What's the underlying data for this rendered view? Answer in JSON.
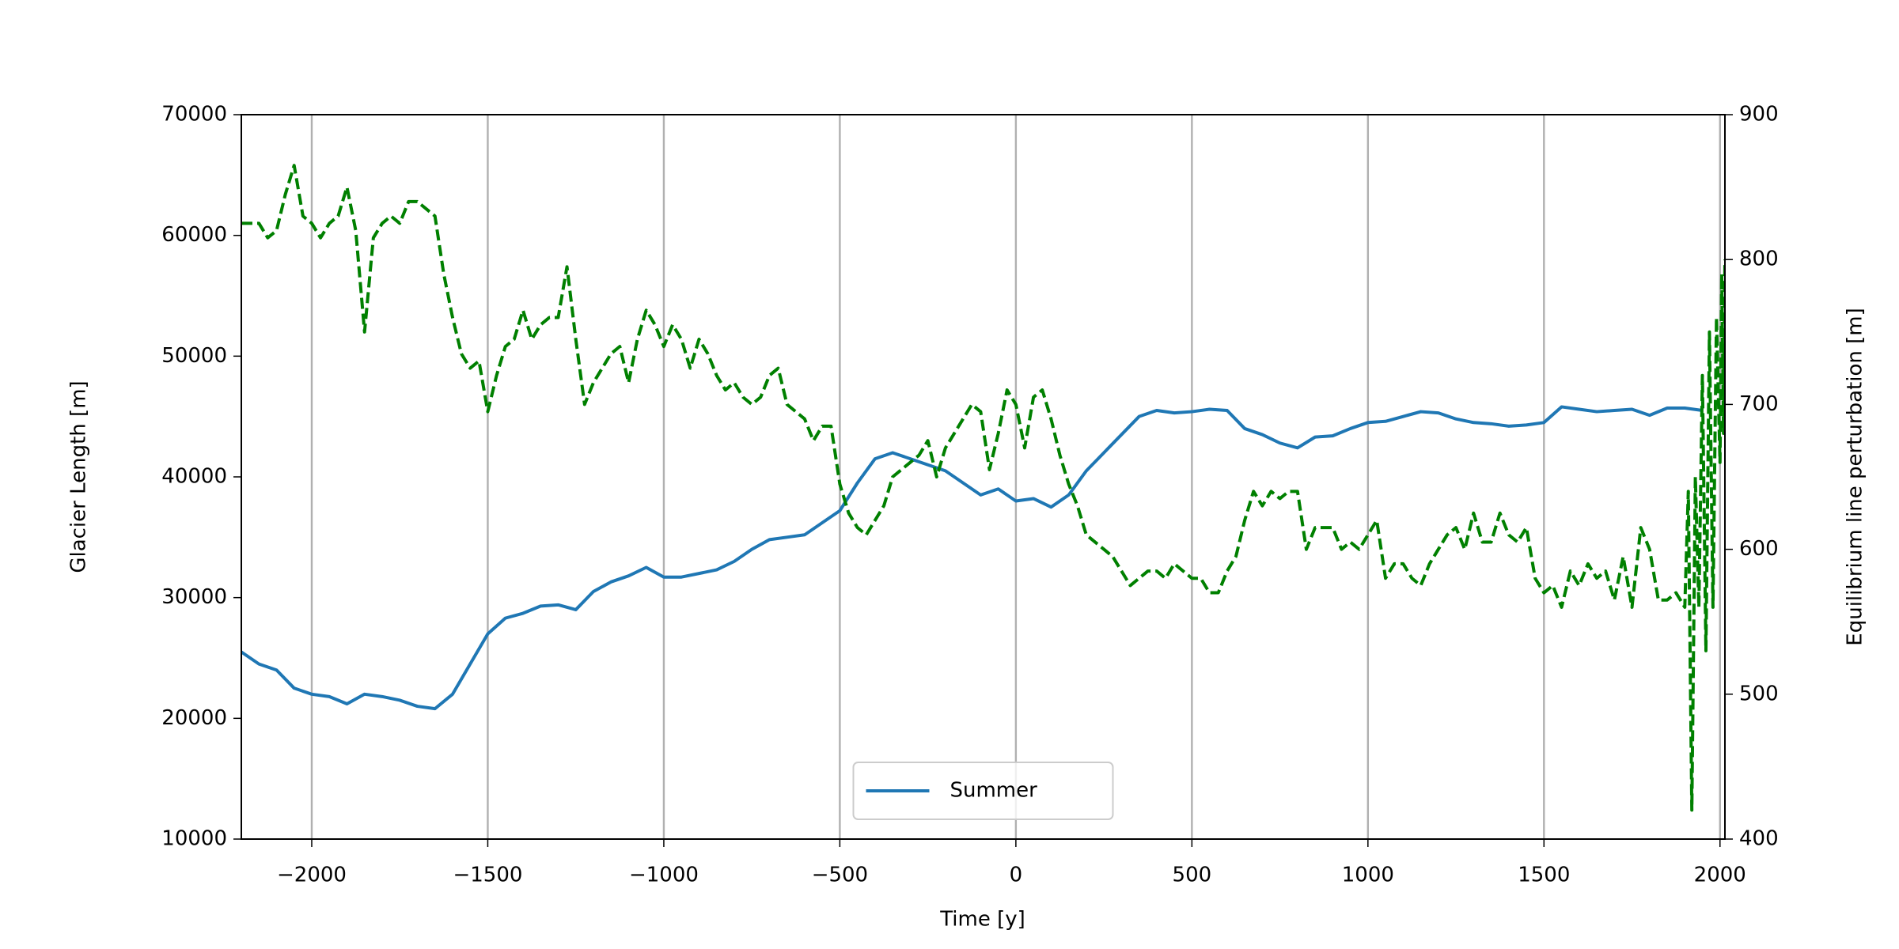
{
  "chart_data": {
    "type": "line",
    "xlabel": "Time [y]",
    "ylabel": "Glacier Length [m]",
    "y2label": "Equilibrium line perturbation [m]",
    "xlim": [
      -2200,
      2014
    ],
    "ylim": [
      10000,
      70000
    ],
    "y2lim": [
      400,
      900
    ],
    "xticks": [
      {
        "value": -2000,
        "label": "−2000"
      },
      {
        "value": -1500,
        "label": "−1500"
      },
      {
        "value": -1000,
        "label": "−1000"
      },
      {
        "value": -500,
        "label": "−500"
      },
      0,
      500,
      1000,
      1500,
      2000
    ],
    "yticks": [
      10000,
      20000,
      30000,
      40000,
      50000,
      60000,
      70000
    ],
    "y2ticks": [
      400,
      500,
      600,
      700,
      800,
      900
    ],
    "grid": "x",
    "legend": "lower center",
    "series": [
      {
        "name": "Summer",
        "color": "#1f77b4",
        "style": "solid",
        "axis": "y",
        "x": [
          -2200,
          -2150,
          -2100,
          -2050,
          -2000,
          -1950,
          -1900,
          -1850,
          -1800,
          -1750,
          -1700,
          -1650,
          -1600,
          -1550,
          -1500,
          -1450,
          -1400,
          -1350,
          -1300,
          -1250,
          -1200,
          -1150,
          -1100,
          -1050,
          -1000,
          -950,
          -900,
          -850,
          -800,
          -750,
          -700,
          -650,
          -600,
          -550,
          -500,
          -450,
          -400,
          -350,
          -300,
          -250,
          -200,
          -150,
          -100,
          -50,
          0,
          50,
          100,
          150,
          200,
          250,
          300,
          350,
          400,
          450,
          500,
          550,
          600,
          650,
          700,
          750,
          800,
          850,
          900,
          950,
          1000,
          1050,
          1100,
          1150,
          1200,
          1250,
          1300,
          1350,
          1400,
          1450,
          1500,
          1550,
          1600,
          1650,
          1700,
          1750,
          1800,
          1850,
          1900,
          1950
        ],
        "values": [
          25500,
          24500,
          24000,
          22500,
          22000,
          21800,
          21200,
          22000,
          21800,
          21500,
          21000,
          20800,
          22000,
          24500,
          27000,
          28300,
          28700,
          29300,
          29400,
          29000,
          30500,
          31300,
          31800,
          32500,
          31700,
          31700,
          32000,
          32300,
          33000,
          34000,
          34800,
          35000,
          35200,
          36200,
          37200,
          39500,
          41500,
          42000,
          41500,
          41000,
          40500,
          39500,
          38500,
          39000,
          38000,
          38200,
          37500,
          38500,
          40500,
          42000,
          43500,
          45000,
          45500,
          45300,
          45400,
          45600,
          45500,
          44000,
          43500,
          42800,
          42400,
          43300,
          43400,
          44000,
          44500,
          44600,
          45000,
          45400,
          45300,
          44800,
          44500,
          44400,
          44200,
          44300,
          44500,
          45800,
          45600,
          45400,
          45500,
          45600,
          45100,
          45700,
          45700,
          45500
        ]
      },
      {
        "color": "#008000",
        "style": "dashed",
        "axis": "y2",
        "x": [
          -2200,
          -2150,
          -2125,
          -2100,
          -2075,
          -2050,
          -2025,
          -2000,
          -1975,
          -1950,
          -1925,
          -1900,
          -1875,
          -1850,
          -1825,
          -1800,
          -1775,
          -1750,
          -1725,
          -1700,
          -1675,
          -1650,
          -1625,
          -1600,
          -1575,
          -1550,
          -1525,
          -1500,
          -1475,
          -1450,
          -1425,
          -1400,
          -1375,
          -1350,
          -1325,
          -1300,
          -1275,
          -1250,
          -1225,
          -1200,
          -1175,
          -1150,
          -1125,
          -1100,
          -1075,
          -1050,
          -1025,
          -1000,
          -975,
          -950,
          -925,
          -900,
          -875,
          -850,
          -825,
          -800,
          -775,
          -750,
          -725,
          -700,
          -675,
          -650,
          -625,
          -600,
          -575,
          -550,
          -525,
          -500,
          -475,
          -450,
          -425,
          -400,
          -375,
          -350,
          -325,
          -300,
          -275,
          -250,
          -225,
          -200,
          -175,
          -150,
          -125,
          -100,
          -75,
          -50,
          -25,
          0,
          25,
          50,
          75,
          100,
          125,
          150,
          175,
          200,
          225,
          250,
          275,
          300,
          325,
          350,
          375,
          400,
          425,
          450,
          475,
          500,
          525,
          550,
          575,
          600,
          625,
          650,
          675,
          700,
          725,
          750,
          775,
          800,
          825,
          850,
          875,
          900,
          925,
          950,
          975,
          1000,
          1025,
          1050,
          1075,
          1100,
          1125,
          1150,
          1175,
          1200,
          1225,
          1250,
          1275,
          1300,
          1325,
          1350,
          1375,
          1400,
          1425,
          1450,
          1475,
          1500,
          1525,
          1550,
          1575,
          1600,
          1625,
          1650,
          1675,
          1700,
          1725,
          1750,
          1775,
          1800,
          1825,
          1850,
          1875,
          1900,
          1910,
          1920,
          1930,
          1940,
          1950,
          1960,
          1970,
          1980,
          1990,
          2000,
          2005,
          2010,
          2014
        ],
        "values": [
          825,
          825,
          815,
          820,
          845,
          865,
          830,
          825,
          815,
          825,
          830,
          850,
          820,
          750,
          815,
          825,
          830,
          825,
          840,
          840,
          835,
          830,
          790,
          760,
          735,
          725,
          730,
          695,
          720,
          740,
          745,
          765,
          745,
          755,
          760,
          760,
          795,
          745,
          700,
          715,
          725,
          735,
          740,
          715,
          745,
          765,
          755,
          740,
          755,
          745,
          725,
          745,
          735,
          720,
          710,
          715,
          705,
          700,
          705,
          720,
          725,
          700,
          695,
          690,
          675,
          685,
          685,
          645,
          625,
          615,
          610,
          620,
          630,
          650,
          655,
          660,
          665,
          675,
          650,
          670,
          680,
          690,
          700,
          695,
          655,
          680,
          710,
          700,
          670,
          705,
          710,
          690,
          665,
          645,
          630,
          610,
          605,
          600,
          595,
          585,
          575,
          580,
          585,
          585,
          580,
          590,
          585,
          580,
          580,
          570,
          570,
          585,
          595,
          620,
          640,
          630,
          640,
          635,
          640,
          640,
          600,
          615,
          615,
          615,
          600,
          605,
          600,
          610,
          620,
          580,
          590,
          590,
          580,
          575,
          590,
          600,
          610,
          615,
          600,
          625,
          605,
          605,
          625,
          610,
          605,
          615,
          580,
          570,
          575,
          560,
          585,
          575,
          590,
          580,
          585,
          565,
          595,
          560,
          615,
          600,
          565,
          565,
          570,
          560,
          640,
          420,
          650,
          560,
          720,
          530,
          750,
          560,
          760,
          660,
          790,
          680,
          800
        ]
      }
    ]
  }
}
